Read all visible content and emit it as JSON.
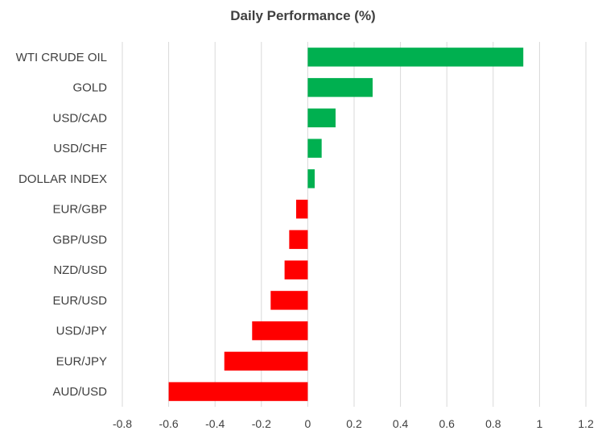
{
  "chart_data": {
    "type": "bar",
    "orientation": "horizontal",
    "title": "Daily Performance (%)",
    "xlabel": "",
    "ylabel": "",
    "categories": [
      "WTI CRUDE OIL",
      "GOLD",
      "USD/CAD",
      "USD/CHF",
      "DOLLAR INDEX",
      "EUR/GBP",
      "GBP/USD",
      "NZD/USD",
      "EUR/USD",
      "USD/JPY",
      "EUR/JPY",
      "AUD/USD"
    ],
    "values": [
      0.93,
      0.28,
      0.12,
      0.06,
      0.03,
      -0.05,
      -0.08,
      -0.1,
      -0.16,
      -0.24,
      -0.36,
      -0.6
    ],
    "xlim": [
      -0.8,
      1.2
    ],
    "xticks": [
      -0.8,
      -0.6,
      -0.4,
      -0.2,
      0,
      0.2,
      0.4,
      0.6,
      0.8,
      1,
      1.2
    ],
    "xtick_labels": [
      "-0.8",
      "-0.6",
      "-0.4",
      "-0.2",
      "0",
      "0.2",
      "0.4",
      "0.6",
      "0.8",
      "1",
      "1.2"
    ],
    "grid": true,
    "legend": "none",
    "colors": {
      "positive": "#00b050",
      "negative": "#ff0000",
      "gridline": "#d9d9d9",
      "text": "#404040"
    }
  }
}
